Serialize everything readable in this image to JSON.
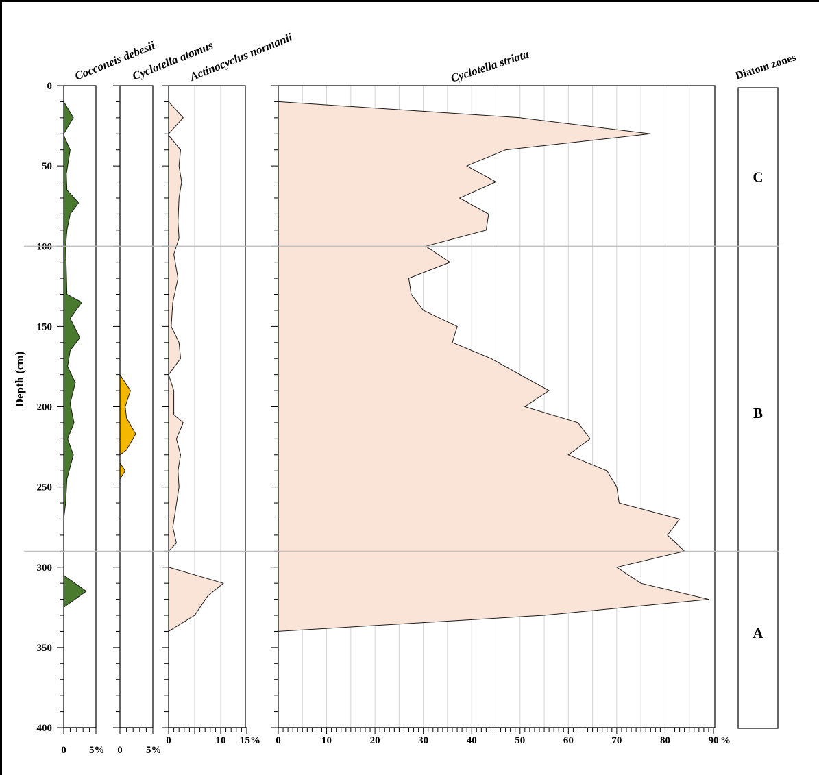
{
  "chart_data": {
    "type": "area",
    "y_axis": {
      "label": "Depth (cm)",
      "range": [
        0,
        400
      ],
      "ticks": [
        0,
        50,
        100,
        150,
        200,
        250,
        300,
        350,
        400
      ]
    },
    "panels": [
      {
        "id": "cocconeis",
        "name": "Cocconeis debesii",
        "fill": "#4a7a2e",
        "xmax": 10,
        "tick_labels": [
          {
            "v": 0,
            "t": "0"
          },
          {
            "v": 5,
            "t": "5%"
          }
        ],
        "points": [
          [
            0,
            10
          ],
          [
            1.5,
            20
          ],
          [
            0,
            30
          ],
          [
            0,
            31
          ],
          [
            1,
            40
          ],
          [
            0.4,
            55
          ],
          [
            0.5,
            65
          ],
          [
            2.3,
            73
          ],
          [
            1,
            80
          ],
          [
            0.5,
            90
          ],
          [
            0.3,
            100
          ],
          [
            0.4,
            115
          ],
          [
            0.5,
            130
          ],
          [
            2.8,
            135
          ],
          [
            1,
            145
          ],
          [
            2.5,
            157
          ],
          [
            1,
            165
          ],
          [
            0.6,
            175
          ],
          [
            1.8,
            185
          ],
          [
            1,
            198
          ],
          [
            1.6,
            210
          ],
          [
            0.6,
            220
          ],
          [
            1.5,
            230
          ],
          [
            0.5,
            245
          ],
          [
            0.3,
            260
          ],
          [
            0,
            270
          ]
        ]
      },
      {
        "id": "cocconeis-b",
        "name": "",
        "fill": "#4a7a2e",
        "xmax": 10,
        "tick_labels": [],
        "points": [
          [
            0,
            305
          ],
          [
            3.5,
            315
          ],
          [
            0,
            325
          ]
        ]
      },
      {
        "id": "atomus",
        "name": "Cyclotella atomus",
        "fill": "#f5b800",
        "xmax": 10,
        "tick_labels": [
          {
            "v": 0,
            "t": "0"
          },
          {
            "v": 5,
            "t": "5%"
          }
        ],
        "points": [
          [
            0,
            180
          ],
          [
            1.6,
            190
          ],
          [
            0.8,
            200
          ],
          [
            1,
            207
          ],
          [
            2.4,
            217
          ],
          [
            1,
            227
          ],
          [
            0,
            230
          ]
        ]
      },
      {
        "id": "atomus-b",
        "name": "",
        "fill": "#f5b800",
        "xmax": 10,
        "tick_labels": [],
        "points": [
          [
            0,
            235
          ],
          [
            0.8,
            240
          ],
          [
            0,
            245
          ]
        ]
      },
      {
        "id": "actinocyclus",
        "name": "Actinocyclus normanii",
        "fill": "#fae3d7",
        "xmax": 15,
        "tick_labels": [
          {
            "v": 0,
            "t": "0"
          },
          {
            "v": 10,
            "t": "10"
          },
          {
            "v": 15,
            "t": "15%"
          }
        ],
        "points": [
          [
            0,
            10
          ],
          [
            2.8,
            20
          ],
          [
            0,
            30
          ],
          [
            0,
            31
          ],
          [
            2.3,
            40
          ],
          [
            2,
            50
          ],
          [
            2.5,
            60
          ],
          [
            2,
            70
          ],
          [
            1.8,
            85
          ],
          [
            2,
            95
          ],
          [
            1,
            105
          ],
          [
            1.8,
            120
          ],
          [
            0.8,
            135
          ],
          [
            0.5,
            150
          ],
          [
            2,
            160
          ],
          [
            2.3,
            170
          ],
          [
            0,
            180
          ],
          [
            1,
            190
          ],
          [
            1,
            205
          ],
          [
            2.8,
            210
          ],
          [
            1.5,
            220
          ],
          [
            2.3,
            230
          ],
          [
            1.8,
            240
          ],
          [
            2,
            250
          ],
          [
            1.3,
            265
          ],
          [
            0.8,
            275
          ],
          [
            1.5,
            285
          ],
          [
            0,
            290
          ]
        ]
      },
      {
        "id": "actinocyclus-b",
        "name": "",
        "fill": "#fae3d7",
        "xmax": 15,
        "tick_labels": [],
        "points": [
          [
            0,
            300
          ],
          [
            10.5,
            310
          ],
          [
            7.5,
            318
          ],
          [
            5,
            330
          ],
          [
            0,
            340
          ]
        ]
      },
      {
        "id": "striata",
        "name": "Cyclotella striata",
        "fill": "#fae3d7",
        "xmax": 90,
        "tick_labels": [
          {
            "v": 0,
            "t": "0"
          },
          {
            "v": 10,
            "t": "10"
          },
          {
            "v": 20,
            "t": "20"
          },
          {
            "v": 30,
            "t": "30"
          },
          {
            "v": 40,
            "t": "40"
          },
          {
            "v": 50,
            "t": "50"
          },
          {
            "v": 60,
            "t": "60"
          },
          {
            "v": 70,
            "t": "70"
          },
          {
            "v": 80,
            "t": "80"
          },
          {
            "v": 90,
            "t": "90"
          }
        ],
        "unit": "%",
        "points": [
          [
            0,
            10
          ],
          [
            50,
            20
          ],
          [
            77,
            30
          ],
          [
            47,
            40
          ],
          [
            39,
            50
          ],
          [
            45,
            60
          ],
          [
            37.5,
            70
          ],
          [
            43.5,
            80
          ],
          [
            43,
            90
          ],
          [
            30.5,
            100
          ],
          [
            35.5,
            110
          ],
          [
            27,
            120
          ],
          [
            27.5,
            130
          ],
          [
            30,
            140
          ],
          [
            37,
            150
          ],
          [
            36,
            160
          ],
          [
            44,
            170
          ],
          [
            56,
            190
          ],
          [
            51,
            200
          ],
          [
            62,
            210
          ],
          [
            64.5,
            220
          ],
          [
            60,
            230
          ],
          [
            68,
            240
          ],
          [
            70,
            250
          ],
          [
            70.5,
            260
          ],
          [
            83,
            270
          ],
          [
            80.5,
            280
          ],
          [
            84,
            290
          ],
          [
            70,
            300
          ],
          [
            75,
            310
          ],
          [
            89,
            320
          ],
          [
            55,
            330
          ],
          [
            0,
            340
          ]
        ]
      }
    ],
    "zones": {
      "title": "Diatom zones",
      "boundaries": [
        100,
        290
      ],
      "labels": [
        {
          "text": "C",
          "depth": 57
        },
        {
          "text": "B",
          "depth": 204
        },
        {
          "text": "A",
          "depth": 341
        }
      ]
    }
  }
}
